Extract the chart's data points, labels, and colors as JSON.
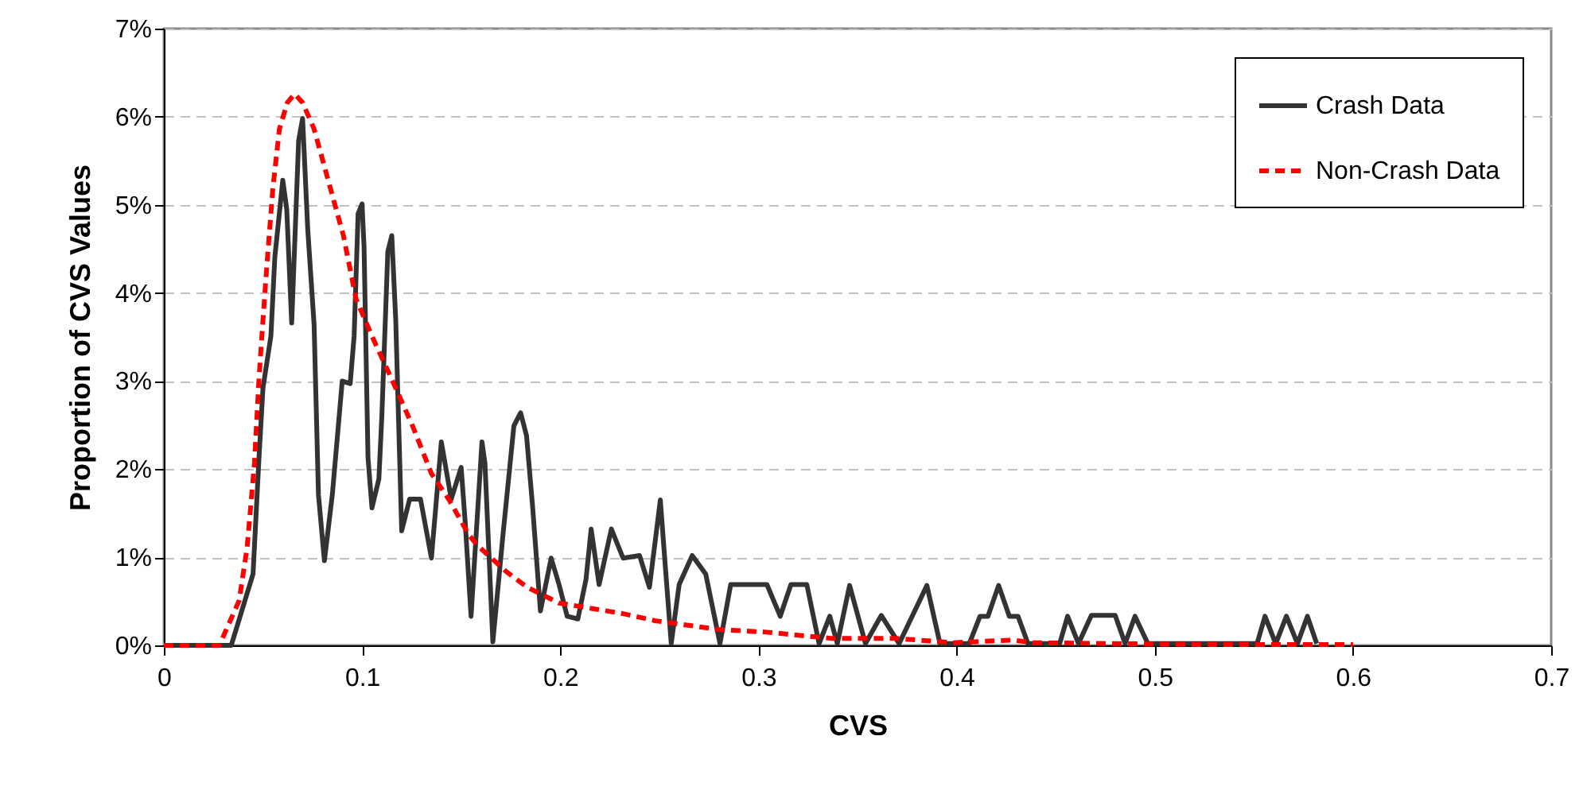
{
  "chart_data": {
    "type": "line",
    "xlabel": "CVS",
    "ylabel": "Proportion of CVS Values",
    "xlim": [
      0,
      0.7
    ],
    "xticks": [
      0,
      0.1,
      0.2,
      0.3,
      0.4,
      0.5,
      0.6,
      0.7
    ],
    "ylim": [
      0,
      7
    ],
    "yticks": [
      {
        "value": 0,
        "label": "0%"
      },
      {
        "value": 1,
        "label": "1%"
      },
      {
        "value": 2,
        "label": "2%"
      },
      {
        "value": 3,
        "label": "3%"
      },
      {
        "value": 4,
        "label": "4%"
      },
      {
        "value": 5,
        "label": "5%"
      },
      {
        "value": 6,
        "label": "6%"
      },
      {
        "value": 7,
        "label": "7%"
      }
    ],
    "grid": "y",
    "legend": "top right",
    "marker": "none",
    "series": [
      {
        "name": "Crash Data",
        "color": "#333333",
        "line_style": "solid",
        "x": [
          0,
          0.034,
          0.045,
          0.048,
          0.05,
          0.054,
          0.056,
          0.06,
          0.062,
          0.0645,
          0.068,
          0.07,
          0.0726,
          0.0758,
          0.078,
          0.081,
          0.085,
          0.09,
          0.094,
          0.096,
          0.098,
          0.1,
          0.101,
          0.103,
          0.105,
          0.1085,
          0.11,
          0.113,
          0.115,
          0.117,
          0.12,
          0.124,
          0.1295,
          0.135,
          0.14,
          0.145,
          0.15,
          0.152,
          0.155,
          0.1605,
          0.162,
          0.166,
          0.171,
          0.1766,
          0.18,
          0.183,
          0.186,
          0.19,
          0.1927,
          0.1954,
          0.1994,
          0.2035,
          0.2089,
          0.213,
          0.2156,
          0.2196,
          0.2258,
          0.2317,
          0.24,
          0.245,
          0.2505,
          0.2527,
          0.256,
          0.26,
          0.2666,
          0.2734,
          0.2806,
          0.286,
          0.3043,
          0.311,
          0.3164,
          0.3244,
          0.3306,
          0.336,
          0.3398,
          0.346,
          0.354,
          0.362,
          0.371,
          0.385,
          0.3916,
          0.4064,
          0.4118,
          0.4158,
          0.4212,
          0.4266,
          0.431,
          0.436,
          0.452,
          0.456,
          0.4615,
          0.468,
          0.48,
          0.485,
          0.49,
          0.4965,
          0.5516,
          0.5556,
          0.561,
          0.5664,
          0.572,
          0.577,
          0.5817
        ],
        "values": [
          0,
          0,
          0.81,
          2.13,
          2.92,
          3.51,
          4.41,
          5.28,
          4.95,
          3.66,
          5.73,
          5.98,
          4.72,
          3.64,
          1.71,
          0.96,
          1.71,
          3.0,
          2.97,
          3.51,
          4.9,
          5.01,
          4.53,
          2.13,
          1.56,
          1.89,
          2.61,
          4.47,
          4.65,
          3.69,
          1.3,
          1.66,
          1.66,
          0.99,
          2.31,
          1.66,
          2.02,
          1.41,
          0.33,
          2.31,
          2.07,
          0.04,
          1.23,
          2.49,
          2.64,
          2.38,
          1.59,
          0.39,
          0.69,
          0.99,
          0.69,
          0.33,
          0.3,
          0.75,
          1.32,
          0.69,
          1.32,
          0.99,
          1.02,
          0.66,
          1.65,
          0.99,
          0.02,
          0.69,
          1.02,
          0.81,
          0.02,
          0.69,
          0.69,
          0.33,
          0.69,
          0.69,
          0.02,
          0.33,
          0.02,
          0.68,
          0.02,
          0.34,
          0.02,
          0.68,
          0.02,
          0.02,
          0.33,
          0.33,
          0.68,
          0.33,
          0.33,
          0.02,
          0.02,
          0.33,
          0.02,
          0.34,
          0.34,
          0.02,
          0.33,
          0.02,
          0.02,
          0.33,
          0.02,
          0.33,
          0.02,
          0.33,
          0.02
        ]
      },
      {
        "name": "Non-Crash Data",
        "color": "#ff0000",
        "line_style": "dashed",
        "x": [
          0,
          0.028,
          0.038,
          0.042,
          0.0457,
          0.048,
          0.05,
          0.052,
          0.055,
          0.0583,
          0.0623,
          0.066,
          0.07,
          0.0758,
          0.084,
          0.0906,
          0.097,
          0.105,
          0.116,
          0.1255,
          0.135,
          0.144,
          0.1537,
          0.158,
          0.1726,
          0.1833,
          0.1994,
          0.2156,
          0.2317,
          0.2478,
          0.28,
          0.304,
          0.3365,
          0.369,
          0.398,
          0.428,
          0.4387,
          0.479,
          0.52,
          0.6
        ],
        "values": [
          0,
          0,
          0.51,
          1.11,
          2.07,
          3.03,
          3.69,
          4.32,
          5.19,
          5.86,
          6.16,
          6.26,
          6.16,
          5.86,
          5.19,
          4.65,
          3.93,
          3.51,
          2.97,
          2.49,
          1.95,
          1.65,
          1.26,
          1.14,
          0.84,
          0.66,
          0.48,
          0.42,
          0.36,
          0.28,
          0.18,
          0.15,
          0.08,
          0.08,
          0.03,
          0.06,
          0.03,
          0.02,
          0.01,
          0.01
        ]
      }
    ]
  }
}
